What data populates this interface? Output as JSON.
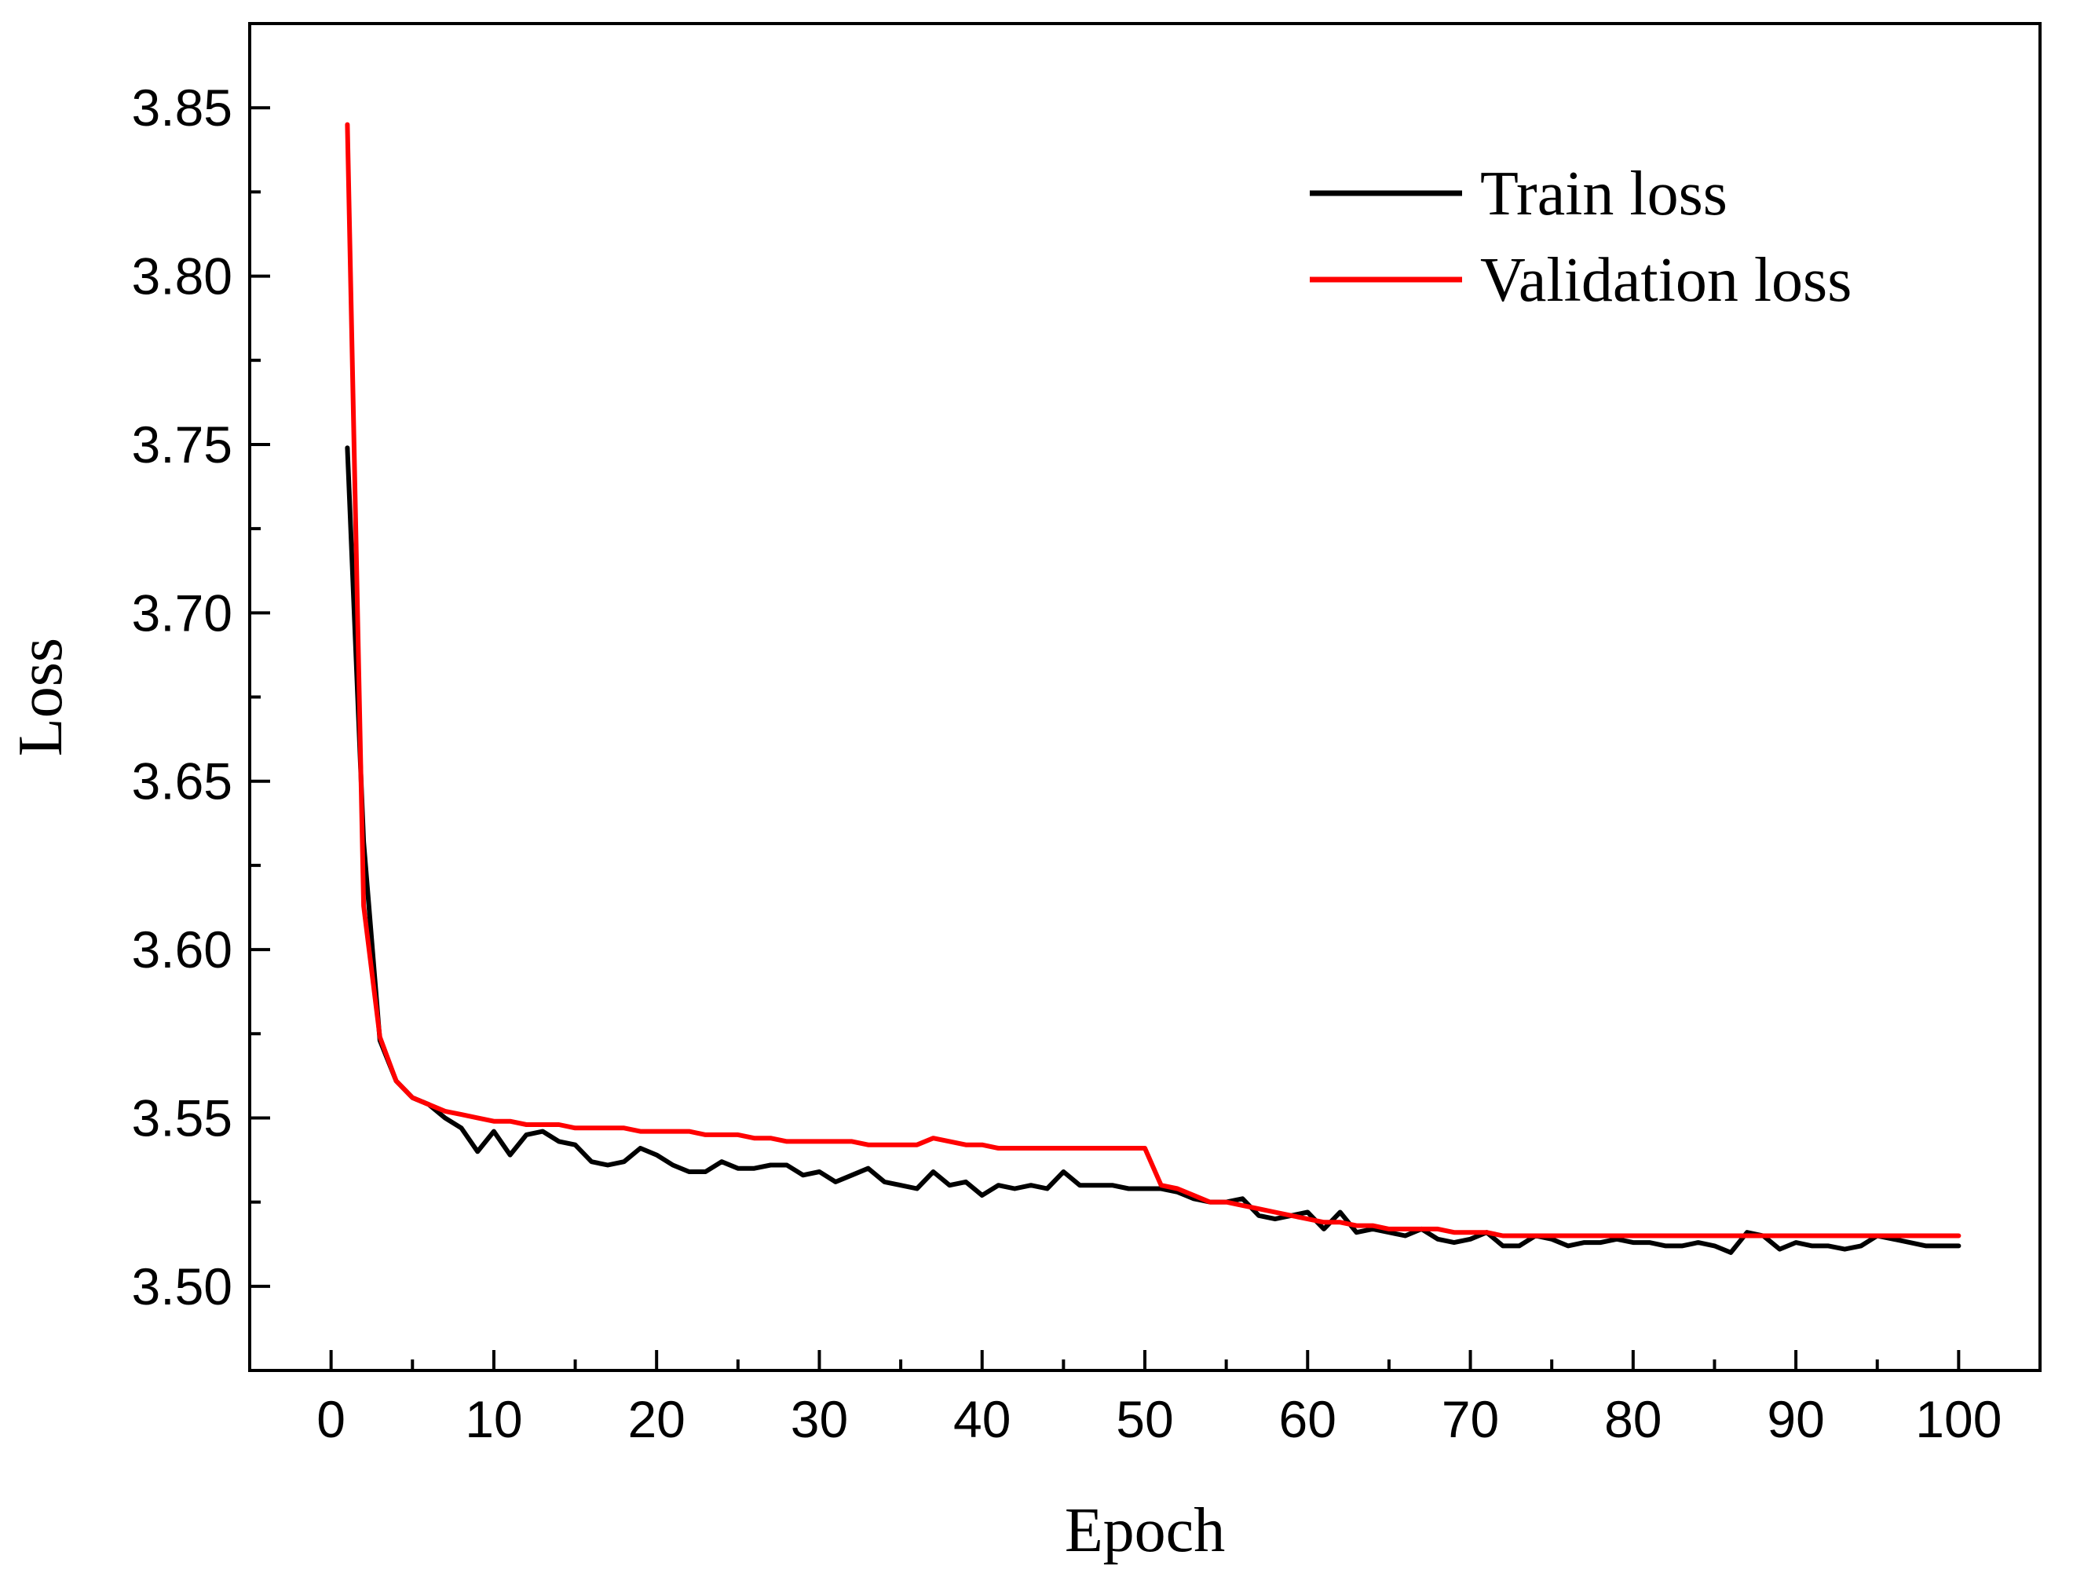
{
  "chart_data": {
    "type": "line",
    "title": "",
    "xlabel": "Epoch",
    "ylabel": "Loss",
    "xlim": [
      -5,
      105
    ],
    "ylim": [
      3.475,
      3.875
    ],
    "x_ticks": [
      0,
      10,
      20,
      30,
      40,
      50,
      60,
      70,
      80,
      90,
      100
    ],
    "x_tick_labels": [
      "0",
      "10",
      "20",
      "30",
      "40",
      "50",
      "60",
      "70",
      "80",
      "90",
      "100"
    ],
    "x_minor_ticks": [
      5,
      15,
      25,
      35,
      45,
      55,
      65,
      75,
      85,
      95
    ],
    "y_ticks": [
      3.5,
      3.55,
      3.6,
      3.65,
      3.7,
      3.75,
      3.8,
      3.85
    ],
    "y_tick_labels": [
      "3.50",
      "3.55",
      "3.60",
      "3.65",
      "3.70",
      "3.75",
      "3.80",
      "3.85"
    ],
    "y_minor_ticks": [
      3.475,
      3.525,
      3.575,
      3.625,
      3.675,
      3.725,
      3.775,
      3.825
    ],
    "grid": false,
    "legend_position": "top-right",
    "series": [
      {
        "name": "Train loss",
        "color": "#000000",
        "x": [
          1,
          2,
          3,
          4,
          5,
          6,
          7,
          8,
          9,
          10,
          11,
          12,
          13,
          14,
          15,
          16,
          17,
          18,
          19,
          20,
          21,
          22,
          23,
          24,
          25,
          26,
          27,
          28,
          29,
          30,
          31,
          32,
          33,
          34,
          35,
          36,
          37,
          38,
          39,
          40,
          41,
          42,
          43,
          44,
          45,
          46,
          47,
          48,
          49,
          50,
          51,
          52,
          53,
          54,
          55,
          56,
          57,
          58,
          59,
          60,
          61,
          62,
          63,
          64,
          65,
          66,
          67,
          68,
          69,
          70,
          71,
          72,
          73,
          74,
          75,
          76,
          77,
          78,
          79,
          80,
          81,
          82,
          83,
          84,
          85,
          86,
          87,
          88,
          89,
          90,
          91,
          92,
          93,
          94,
          95,
          96,
          97,
          98,
          99,
          100
        ],
        "values": [
          3.749,
          3.632,
          3.573,
          3.561,
          3.556,
          3.554,
          3.55,
          3.547,
          3.54,
          3.546,
          3.539,
          3.545,
          3.546,
          3.543,
          3.542,
          3.537,
          3.536,
          3.537,
          3.541,
          3.539,
          3.536,
          3.534,
          3.534,
          3.537,
          3.535,
          3.535,
          3.536,
          3.536,
          3.533,
          3.534,
          3.531,
          3.533,
          3.535,
          3.531,
          3.53,
          3.529,
          3.534,
          3.53,
          3.531,
          3.527,
          3.53,
          3.529,
          3.53,
          3.529,
          3.534,
          3.53,
          3.53,
          3.53,
          3.529,
          3.529,
          3.529,
          3.528,
          3.526,
          3.525,
          3.525,
          3.526,
          3.521,
          3.52,
          3.521,
          3.522,
          3.517,
          3.522,
          3.516,
          3.517,
          3.516,
          3.515,
          3.517,
          3.514,
          3.513,
          3.514,
          3.516,
          3.512,
          3.512,
          3.515,
          3.514,
          3.512,
          3.513,
          3.513,
          3.514,
          3.513,
          3.513,
          3.512,
          3.512,
          3.513,
          3.512,
          3.51,
          3.516,
          3.515,
          3.511,
          3.513,
          3.512,
          3.512,
          3.511,
          3.512,
          3.515,
          3.514,
          3.513,
          3.512,
          3.512,
          3.512
        ]
      },
      {
        "name": "Validation loss",
        "color": "#ff0000",
        "x": [
          1,
          2,
          3,
          4,
          5,
          6,
          7,
          8,
          9,
          10,
          11,
          12,
          13,
          14,
          15,
          16,
          17,
          18,
          19,
          20,
          21,
          22,
          23,
          24,
          25,
          26,
          27,
          28,
          29,
          30,
          31,
          32,
          33,
          34,
          35,
          36,
          37,
          38,
          39,
          40,
          41,
          42,
          43,
          44,
          45,
          46,
          47,
          48,
          49,
          50,
          51,
          52,
          53,
          54,
          55,
          56,
          57,
          58,
          59,
          60,
          61,
          62,
          63,
          64,
          65,
          66,
          67,
          68,
          69,
          70,
          71,
          72,
          73,
          74,
          75,
          76,
          77,
          78,
          79,
          80,
          81,
          82,
          83,
          84,
          85,
          86,
          87,
          88,
          89,
          90,
          91,
          92,
          93,
          94,
          95,
          96,
          97,
          98,
          99,
          100
        ],
        "values": [
          3.845,
          3.613,
          3.574,
          3.561,
          3.556,
          3.554,
          3.552,
          3.551,
          3.55,
          3.549,
          3.549,
          3.548,
          3.548,
          3.548,
          3.547,
          3.547,
          3.547,
          3.547,
          3.546,
          3.546,
          3.546,
          3.546,
          3.545,
          3.545,
          3.545,
          3.544,
          3.544,
          3.543,
          3.543,
          3.543,
          3.543,
          3.543,
          3.542,
          3.542,
          3.542,
          3.542,
          3.544,
          3.543,
          3.542,
          3.542,
          3.541,
          3.541,
          3.541,
          3.541,
          3.541,
          3.541,
          3.541,
          3.541,
          3.541,
          3.541,
          3.53,
          3.529,
          3.527,
          3.525,
          3.525,
          3.524,
          3.523,
          3.522,
          3.521,
          3.52,
          3.519,
          3.519,
          3.518,
          3.518,
          3.517,
          3.517,
          3.517,
          3.517,
          3.516,
          3.516,
          3.516,
          3.515,
          3.515,
          3.515,
          3.515,
          3.515,
          3.515,
          3.515,
          3.515,
          3.515,
          3.515,
          3.515,
          3.515,
          3.515,
          3.515,
          3.515,
          3.515,
          3.515,
          3.515,
          3.515,
          3.515,
          3.515,
          3.515,
          3.515,
          3.515,
          3.515,
          3.515,
          3.515,
          3.515,
          3.515
        ]
      }
    ]
  }
}
